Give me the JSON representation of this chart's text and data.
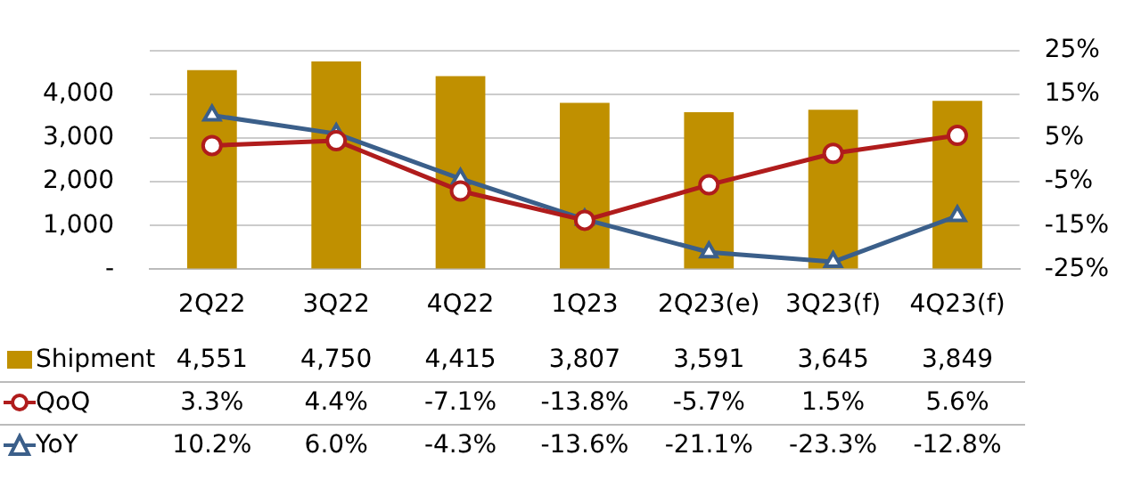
{
  "chart_data": {
    "type": "bar",
    "categories": [
      "2Q22",
      "3Q22",
      "4Q22",
      "1Q23",
      "2Q23(e)",
      "3Q23(f)",
      "4Q23(f)"
    ],
    "series": [
      {
        "name": "Shipment",
        "color": "#c09000",
        "values": [
          4551,
          4750,
          4415,
          3807,
          3591,
          3645,
          3849
        ],
        "value_labels": [
          "4,551",
          "4,750",
          "4,415",
          "3,807",
          "3,591",
          "3,645",
          "3,849"
        ]
      },
      {
        "name": "QoQ",
        "type": "line",
        "axis": "y2",
        "marker": "circle",
        "color": "#b01c1c",
        "values": [
          3.3,
          4.4,
          -7.1,
          -13.8,
          -5.7,
          1.5,
          5.6
        ],
        "value_labels": [
          "3.3%",
          "4.4%",
          "-7.1%",
          "-13.8%",
          "-5.7%",
          "1.5%",
          "5.6%"
        ]
      },
      {
        "name": "YoY",
        "type": "line",
        "axis": "y2",
        "marker": "triangle",
        "color": "#3b5f8a",
        "values": [
          10.2,
          6.0,
          -4.3,
          -13.6,
          -21.1,
          -23.3,
          -12.8
        ],
        "value_labels": [
          "10.2%",
          "6.0%",
          "-4.3%",
          "-13.6%",
          "-21.1%",
          "-23.3%",
          "-12.8%"
        ]
      }
    ],
    "ylim": [
      0,
      5000
    ],
    "yticks": [
      {
        "value": 0,
        "label": "-"
      },
      {
        "value": 1000,
        "label": "1,000"
      },
      {
        "value": 2000,
        "label": "2,000"
      },
      {
        "value": 3000,
        "label": "3,000"
      },
      {
        "value": 4000,
        "label": "4,000"
      },
      {
        "value": 5000,
        "label": null
      }
    ],
    "y2lim": [
      -25,
      25
    ],
    "y2ticks": [
      {
        "value": -25,
        "label": "-25%"
      },
      {
        "value": -15,
        "label": "-15%"
      },
      {
        "value": -5,
        "label": "-5%"
      },
      {
        "value": 5,
        "label": "5%"
      },
      {
        "value": 15,
        "label": "15%"
      },
      {
        "value": 25,
        "label": "25%"
      }
    ],
    "grid": "y",
    "legend": "bottom",
    "data_labels": true
  }
}
